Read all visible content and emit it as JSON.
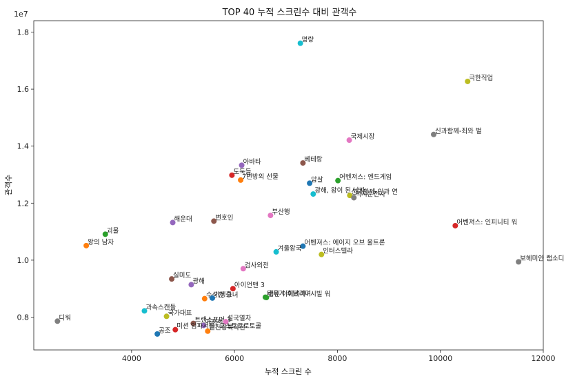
{
  "chart_data": {
    "type": "scatter",
    "title": "TOP 40 누적 스크린수 대비 관객수",
    "xlabel": "누적 스크린 수",
    "ylabel": "관객수",
    "y_scale_label": "1e7",
    "xlim": [
      2100,
      12000
    ],
    "ylim": [
      0.685,
      1.84
    ],
    "xticks": [
      4000,
      6000,
      8000,
      10000,
      12000
    ],
    "yticks": [
      0.8,
      1.0,
      1.2,
      1.4,
      1.6,
      1.8
    ],
    "xtick_labels": [
      "4000",
      "6000",
      "8000",
      "10000",
      "12000"
    ],
    "ytick_labels": [
      "0.8",
      "1.0",
      "1.2",
      "1.4",
      "1.6",
      "1.8"
    ],
    "grid": false,
    "points": [
      {
        "label": "명량",
        "x": 7280,
        "y": 1.761,
        "color": "#17becf"
      },
      {
        "label": "극한직업",
        "x": 10530,
        "y": 1.627,
        "color": "#bcbd22"
      },
      {
        "label": "신과함께-죄와 벌",
        "x": 9870,
        "y": 1.441,
        "color": "#7f7f7f"
      },
      {
        "label": "국제시장",
        "x": 8230,
        "y": 1.421,
        "color": "#e377c2"
      },
      {
        "label": "베테랑",
        "x": 7330,
        "y": 1.341,
        "color": "#8c564b"
      },
      {
        "label": "아바타",
        "x": 6140,
        "y": 1.333,
        "color": "#9467bd"
      },
      {
        "label": "도둑들",
        "x": 5950,
        "y": 1.298,
        "color": "#d62728"
      },
      {
        "label": "7번방의 선물",
        "x": 6120,
        "y": 1.281,
        "color": "#ff7f0e"
      },
      {
        "label": "암살",
        "x": 7460,
        "y": 1.27,
        "color": "#1f77b4"
      },
      {
        "label": "어벤져스: 엔드게임",
        "x": 8010,
        "y": 1.279,
        "color": "#2ca02c"
      },
      {
        "label": "광해, 왕이 된 남자",
        "x": 7530,
        "y": 1.232,
        "color": "#17becf"
      },
      {
        "label": "신과함께-인과 연",
        "x": 8240,
        "y": 1.227,
        "color": "#bcbd22"
      },
      {
        "label": "택시운전사",
        "x": 8320,
        "y": 1.219,
        "color": "#7f7f7f"
      },
      {
        "label": "어벤져스: 인피니티 워",
        "x": 10290,
        "y": 1.121,
        "color": "#d62728"
      },
      {
        "label": "부산행",
        "x": 6700,
        "y": 1.157,
        "color": "#e377c2"
      },
      {
        "label": "해운대",
        "x": 4800,
        "y": 1.132,
        "color": "#9467bd"
      },
      {
        "label": "변호인",
        "x": 5600,
        "y": 1.137,
        "color": "#8c564b"
      },
      {
        "label": "괴물",
        "x": 3490,
        "y": 1.091,
        "color": "#2ca02c"
      },
      {
        "label": "왕의 남자",
        "x": 3120,
        "y": 1.051,
        "color": "#ff7f0e"
      },
      {
        "label": "어벤져스: 에이지 오브 울트론",
        "x": 7330,
        "y": 1.049,
        "color": "#1f77b4"
      },
      {
        "label": "겨울왕국",
        "x": 6810,
        "y": 1.029,
        "color": "#17becf"
      },
      {
        "label": "인터스텔라",
        "x": 7690,
        "y": 1.02,
        "color": "#bcbd22"
      },
      {
        "label": "보헤미안 랩소디",
        "x": 11520,
        "y": 0.994,
        "color": "#7f7f7f"
      },
      {
        "label": "검사외전",
        "x": 6170,
        "y": 0.97,
        "color": "#e377c2"
      },
      {
        "label": "실미도",
        "x": 4780,
        "y": 0.934,
        "color": "#8c564b"
      },
      {
        "label": "광해",
        "x": 5160,
        "y": 0.914,
        "color": "#9467bd"
      },
      {
        "label": "아이언맨 3",
        "x": 5970,
        "y": 0.9,
        "color": "#d62728"
      },
      {
        "label": "수상한 그녀",
        "x": 5420,
        "y": 0.865,
        "color": "#ff7f0e"
      },
      {
        "label": "기생충",
        "x": 5570,
        "y": 0.867,
        "color": "#1f77b4"
      },
      {
        "label": "태극기 휘날리며",
        "x": 6600,
        "y": 0.87,
        "color": "#2ca02c"
      },
      {
        "label": "캡틴 아메리카: 시빌 워",
        "x": 6620,
        "y": 0.869,
        "color": "#2ca02c"
      },
      {
        "label": "과속스캔들",
        "x": 4250,
        "y": 0.822,
        "color": "#17becf"
      },
      {
        "label": "국가대표",
        "x": 4680,
        "y": 0.803,
        "color": "#bcbd22"
      },
      {
        "label": "디워",
        "x": 2560,
        "y": 0.786,
        "color": "#7f7f7f"
      },
      {
        "label": "트랜스포머 3",
        "x": 5200,
        "y": 0.778,
        "color": "#8c564b"
      },
      {
        "label": "설국열차",
        "x": 5830,
        "y": 0.784,
        "color": "#e377c2"
      },
      {
        "label": "아저씨",
        "x": 5400,
        "y": 0.771,
        "color": "#9467bd"
      },
      {
        "label": "미션 임파서블: 고스트프로토콜",
        "x": 4850,
        "y": 0.756,
        "color": "#d62728"
      },
      {
        "label": "인천상륙작전",
        "x": 5480,
        "y": 0.751,
        "color": "#ff7f0e"
      },
      {
        "label": "공조",
        "x": 4500,
        "y": 0.741,
        "color": "#1f77b4"
      }
    ]
  }
}
